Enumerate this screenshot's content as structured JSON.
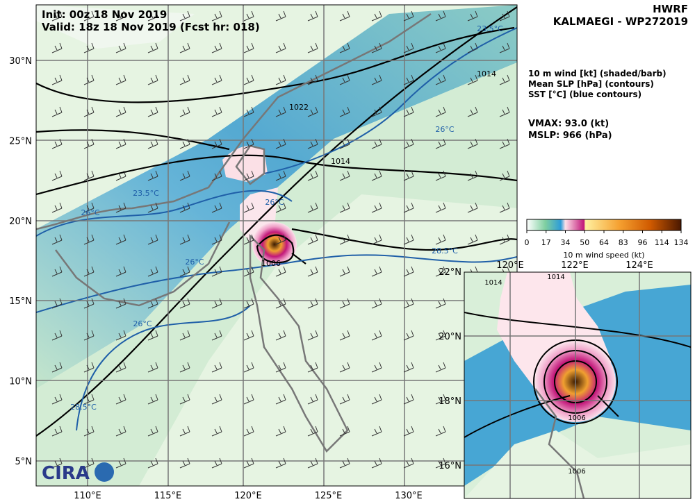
{
  "header": {
    "init": "Init:  00z 18 Nov 2019",
    "valid": "Valid: 18z 18 Nov 2019 (Fcst hr: 018)",
    "model": "HWRF",
    "storm": "KALMAEGI - WP272019"
  },
  "fields": [
    "10 m wind [kt] (shaded/barb)",
    "Mean SLP [hPa] (contours)",
    "SST [°C] (blue contours)"
  ],
  "stats": [
    "VMAX:  93.0 (kt)",
    "MSLP:  966 (hPa)"
  ],
  "colorbar": {
    "ticks": [
      "0",
      "17",
      "34",
      "50",
      "64",
      "83",
      "96",
      "114",
      "134"
    ],
    "label": "10 m wind speed (kt)"
  },
  "main_map": {
    "lon_labels": [
      "110°E",
      "115°E",
      "120°E",
      "125°E",
      "130°E"
    ],
    "lat_labels": [
      "30°N",
      "25°N",
      "20°N",
      "15°N",
      "10°N",
      "5°N"
    ],
    "contour_labels": [
      "1022",
      "1014",
      "1014",
      "23.5°C",
      "23.5°C",
      "26°C",
      "26°C",
      "26°C",
      "28.5°C",
      "28.5°C",
      "26°C",
      "26°C",
      "1006"
    ]
  },
  "inset_map": {
    "lon_labels": [
      "120°E",
      "122°E",
      "124°E"
    ],
    "lat_labels": [
      "22°N",
      "20°N",
      "18°N",
      "16°N"
    ],
    "contour_labels": [
      "1014",
      "1014",
      "1006",
      "1006"
    ]
  },
  "logo": "CIRA"
}
